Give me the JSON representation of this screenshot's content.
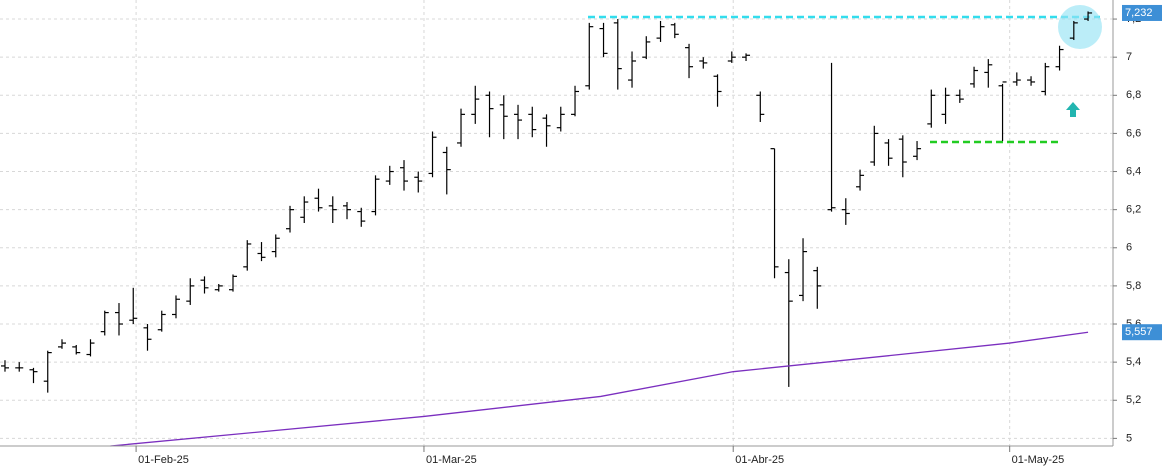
{
  "chart_data": {
    "type": "ohlc",
    "xlim": [
      -0.35,
      77.75
    ],
    "xticks": [
      {
        "value": 9.2,
        "label": "01-Feb-25"
      },
      {
        "value": 29.4,
        "label": "01-Mar-25"
      },
      {
        "value": 51.1,
        "label": "01-Abr-25"
      },
      {
        "value": 70.5,
        "label": "01-May-25"
      }
    ],
    "ylim": [
      4.96,
      7.3
    ],
    "yticks": [
      {
        "value": 5,
        "label": "5"
      },
      {
        "value": 5.2,
        "label": "5,2"
      },
      {
        "value": 5.4,
        "label": "5,4"
      },
      {
        "value": 5.6,
        "label": "5,6"
      },
      {
        "value": 5.8,
        "label": "5,8"
      },
      {
        "value": 6,
        "label": "6"
      },
      {
        "value": 6.2,
        "label": "6,2"
      },
      {
        "value": 6.4,
        "label": "6,4"
      },
      {
        "value": 6.6,
        "label": "6,6"
      },
      {
        "value": 6.8,
        "label": "6,8"
      },
      {
        "value": 7,
        "label": "7"
      },
      {
        "value": 7.2,
        "label": "7,2"
      }
    ],
    "grid": true,
    "color": "#000000",
    "open": [
      5.38,
      5.37,
      5.36,
      5.3,
      5.48,
      5.48,
      5.44,
      5.56,
      5.66,
      5.62,
      5.58,
      5.57,
      5.65,
      5.72,
      5.83,
      5.78,
      5.78,
      5.9,
      5.97,
      5.98,
      6.1,
      6.16,
      6.26,
      6.22,
      6.22,
      6.19,
      6.19,
      6.35,
      6.42,
      6.37,
      6.39,
      6.5,
      6.55,
      6.7,
      6.8,
      6.75,
      6.7,
      6.7,
      6.68,
      6.63,
      6.7,
      6.85,
      7.15,
      7.18,
      6.88,
      7.0,
      7.1,
      7.17,
      7.05,
      6.98,
      6.9,
      6.98,
      7.0,
      6.8,
      6.52,
      5.87,
      5.75,
      5.88,
      6.2,
      6.2,
      6.32,
      6.45,
      6.55,
      6.57,
      6.48,
      6.65,
      6.7,
      6.8,
      6.86,
      6.92,
      6.85,
      6.87,
      6.88,
      6.82,
      6.95,
      7.1,
      7.2
    ],
    "high": [
      5.41,
      5.4,
      5.37,
      5.46,
      5.52,
      5.49,
      5.52,
      5.67,
      5.71,
      5.79,
      5.6,
      5.67,
      5.75,
      5.84,
      5.85,
      5.81,
      5.86,
      6.04,
      6.03,
      6.07,
      6.22,
      6.27,
      6.31,
      6.27,
      6.24,
      6.21,
      6.38,
      6.43,
      6.46,
      6.4,
      6.61,
      6.53,
      6.73,
      6.85,
      6.82,
      6.8,
      6.75,
      6.74,
      6.7,
      6.74,
      6.85,
      7.18,
      7.18,
      7.2,
      7.03,
      7.11,
      7.19,
      7.18,
      7.07,
      7.0,
      6.91,
      7.03,
      7.02,
      6.82,
      6.52,
      5.94,
      6.05,
      5.9,
      6.97,
      6.26,
      6.41,
      6.64,
      6.57,
      6.59,
      6.56,
      6.83,
      6.84,
      6.83,
      6.95,
      6.99,
      6.86,
      6.92,
      6.9,
      6.97,
      7.06,
      7.19,
      7.24
    ],
    "low": [
      5.35,
      5.35,
      5.29,
      5.24,
      5.47,
      5.44,
      5.43,
      5.54,
      5.54,
      5.6,
      5.46,
      5.56,
      5.63,
      5.7,
      5.76,
      5.77,
      5.77,
      5.88,
      5.93,
      5.95,
      6.08,
      6.13,
      6.19,
      6.13,
      6.15,
      6.11,
      6.17,
      6.33,
      6.3,
      6.29,
      6.37,
      6.28,
      6.53,
      6.65,
      6.58,
      6.57,
      6.57,
      6.58,
      6.53,
      6.61,
      6.69,
      6.83,
      7.0,
      6.83,
      6.84,
      6.99,
      7.08,
      7.1,
      6.89,
      6.94,
      6.74,
      6.97,
      6.98,
      6.66,
      5.84,
      5.27,
      5.72,
      5.68,
      6.19,
      6.12,
      6.3,
      6.43,
      6.43,
      6.37,
      6.46,
      6.63,
      6.65,
      6.76,
      6.84,
      6.84,
      6.56,
      6.85,
      6.85,
      6.8,
      6.93,
      7.09,
      7.19
    ],
    "close": [
      5.37,
      5.37,
      5.35,
      5.45,
      5.5,
      5.45,
      5.5,
      5.66,
      5.6,
      5.63,
      5.52,
      5.65,
      5.73,
      5.8,
      5.79,
      5.8,
      5.85,
      6.02,
      5.95,
      6.05,
      6.2,
      6.24,
      6.21,
      6.2,
      6.2,
      6.14,
      6.36,
      6.4,
      6.35,
      6.35,
      6.58,
      6.41,
      6.7,
      6.78,
      6.73,
      6.69,
      6.67,
      6.62,
      6.64,
      6.7,
      6.82,
      7.16,
      7.02,
      6.94,
      6.98,
      7.08,
      7.16,
      7.12,
      6.95,
      6.97,
      6.82,
      7.0,
      7.01,
      6.7,
      5.9,
      5.72,
      5.98,
      5.8,
      6.21,
      6.18,
      6.38,
      6.6,
      6.47,
      6.45,
      6.52,
      6.8,
      6.8,
      6.78,
      6.93,
      6.96,
      6.87,
      6.88,
      6.87,
      6.95,
      7.04,
      7.18,
      7.232
    ],
    "last_label": "7,232",
    "ma": {
      "color": "#7b2fbf",
      "x": [
        7.4,
        29.4,
        41.8,
        51.1,
        62.8,
        70.5,
        76
      ],
      "values": [
        4.96,
        5.115,
        5.22,
        5.35,
        5.44,
        5.5,
        5.557
      ],
      "last_label": "5,557"
    }
  }
}
